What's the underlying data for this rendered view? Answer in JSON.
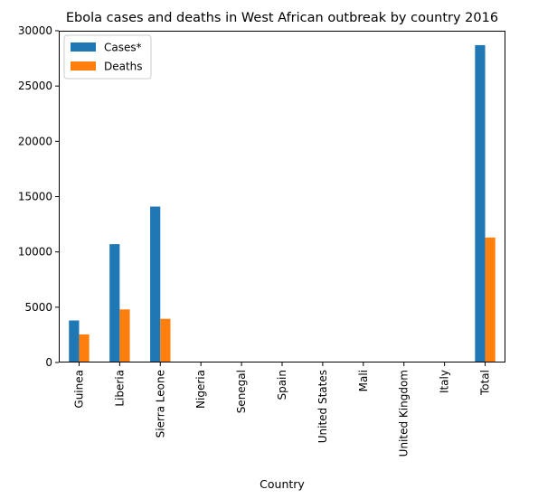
{
  "chart_data": {
    "type": "bar",
    "title": "Ebola cases and deaths in West African outbreak by country 2016",
    "xlabel": "Country",
    "ylabel": "",
    "categories": [
      "Guinea",
      "Liberia",
      "Sierra Leone",
      "Nigeria",
      "Senegal",
      "Spain",
      "United States",
      "Mali",
      "United Kingdom",
      "Italy",
      "Total"
    ],
    "series": [
      {
        "name": "Cases*",
        "color": "#1f77b4",
        "values": [
          3800,
          10700,
          14100,
          20,
          1,
          1,
          4,
          8,
          1,
          1,
          28700
        ]
      },
      {
        "name": "Deaths",
        "color": "#ff7f0e",
        "values": [
          2540,
          4800,
          3950,
          8,
          0,
          0,
          1,
          6,
          0,
          0,
          11300
        ]
      }
    ],
    "ylim": [
      0,
      30000
    ],
    "yticks": [
      0,
      5000,
      10000,
      15000,
      20000,
      25000,
      30000
    ],
    "grid": false,
    "legend_position": "top-left"
  }
}
